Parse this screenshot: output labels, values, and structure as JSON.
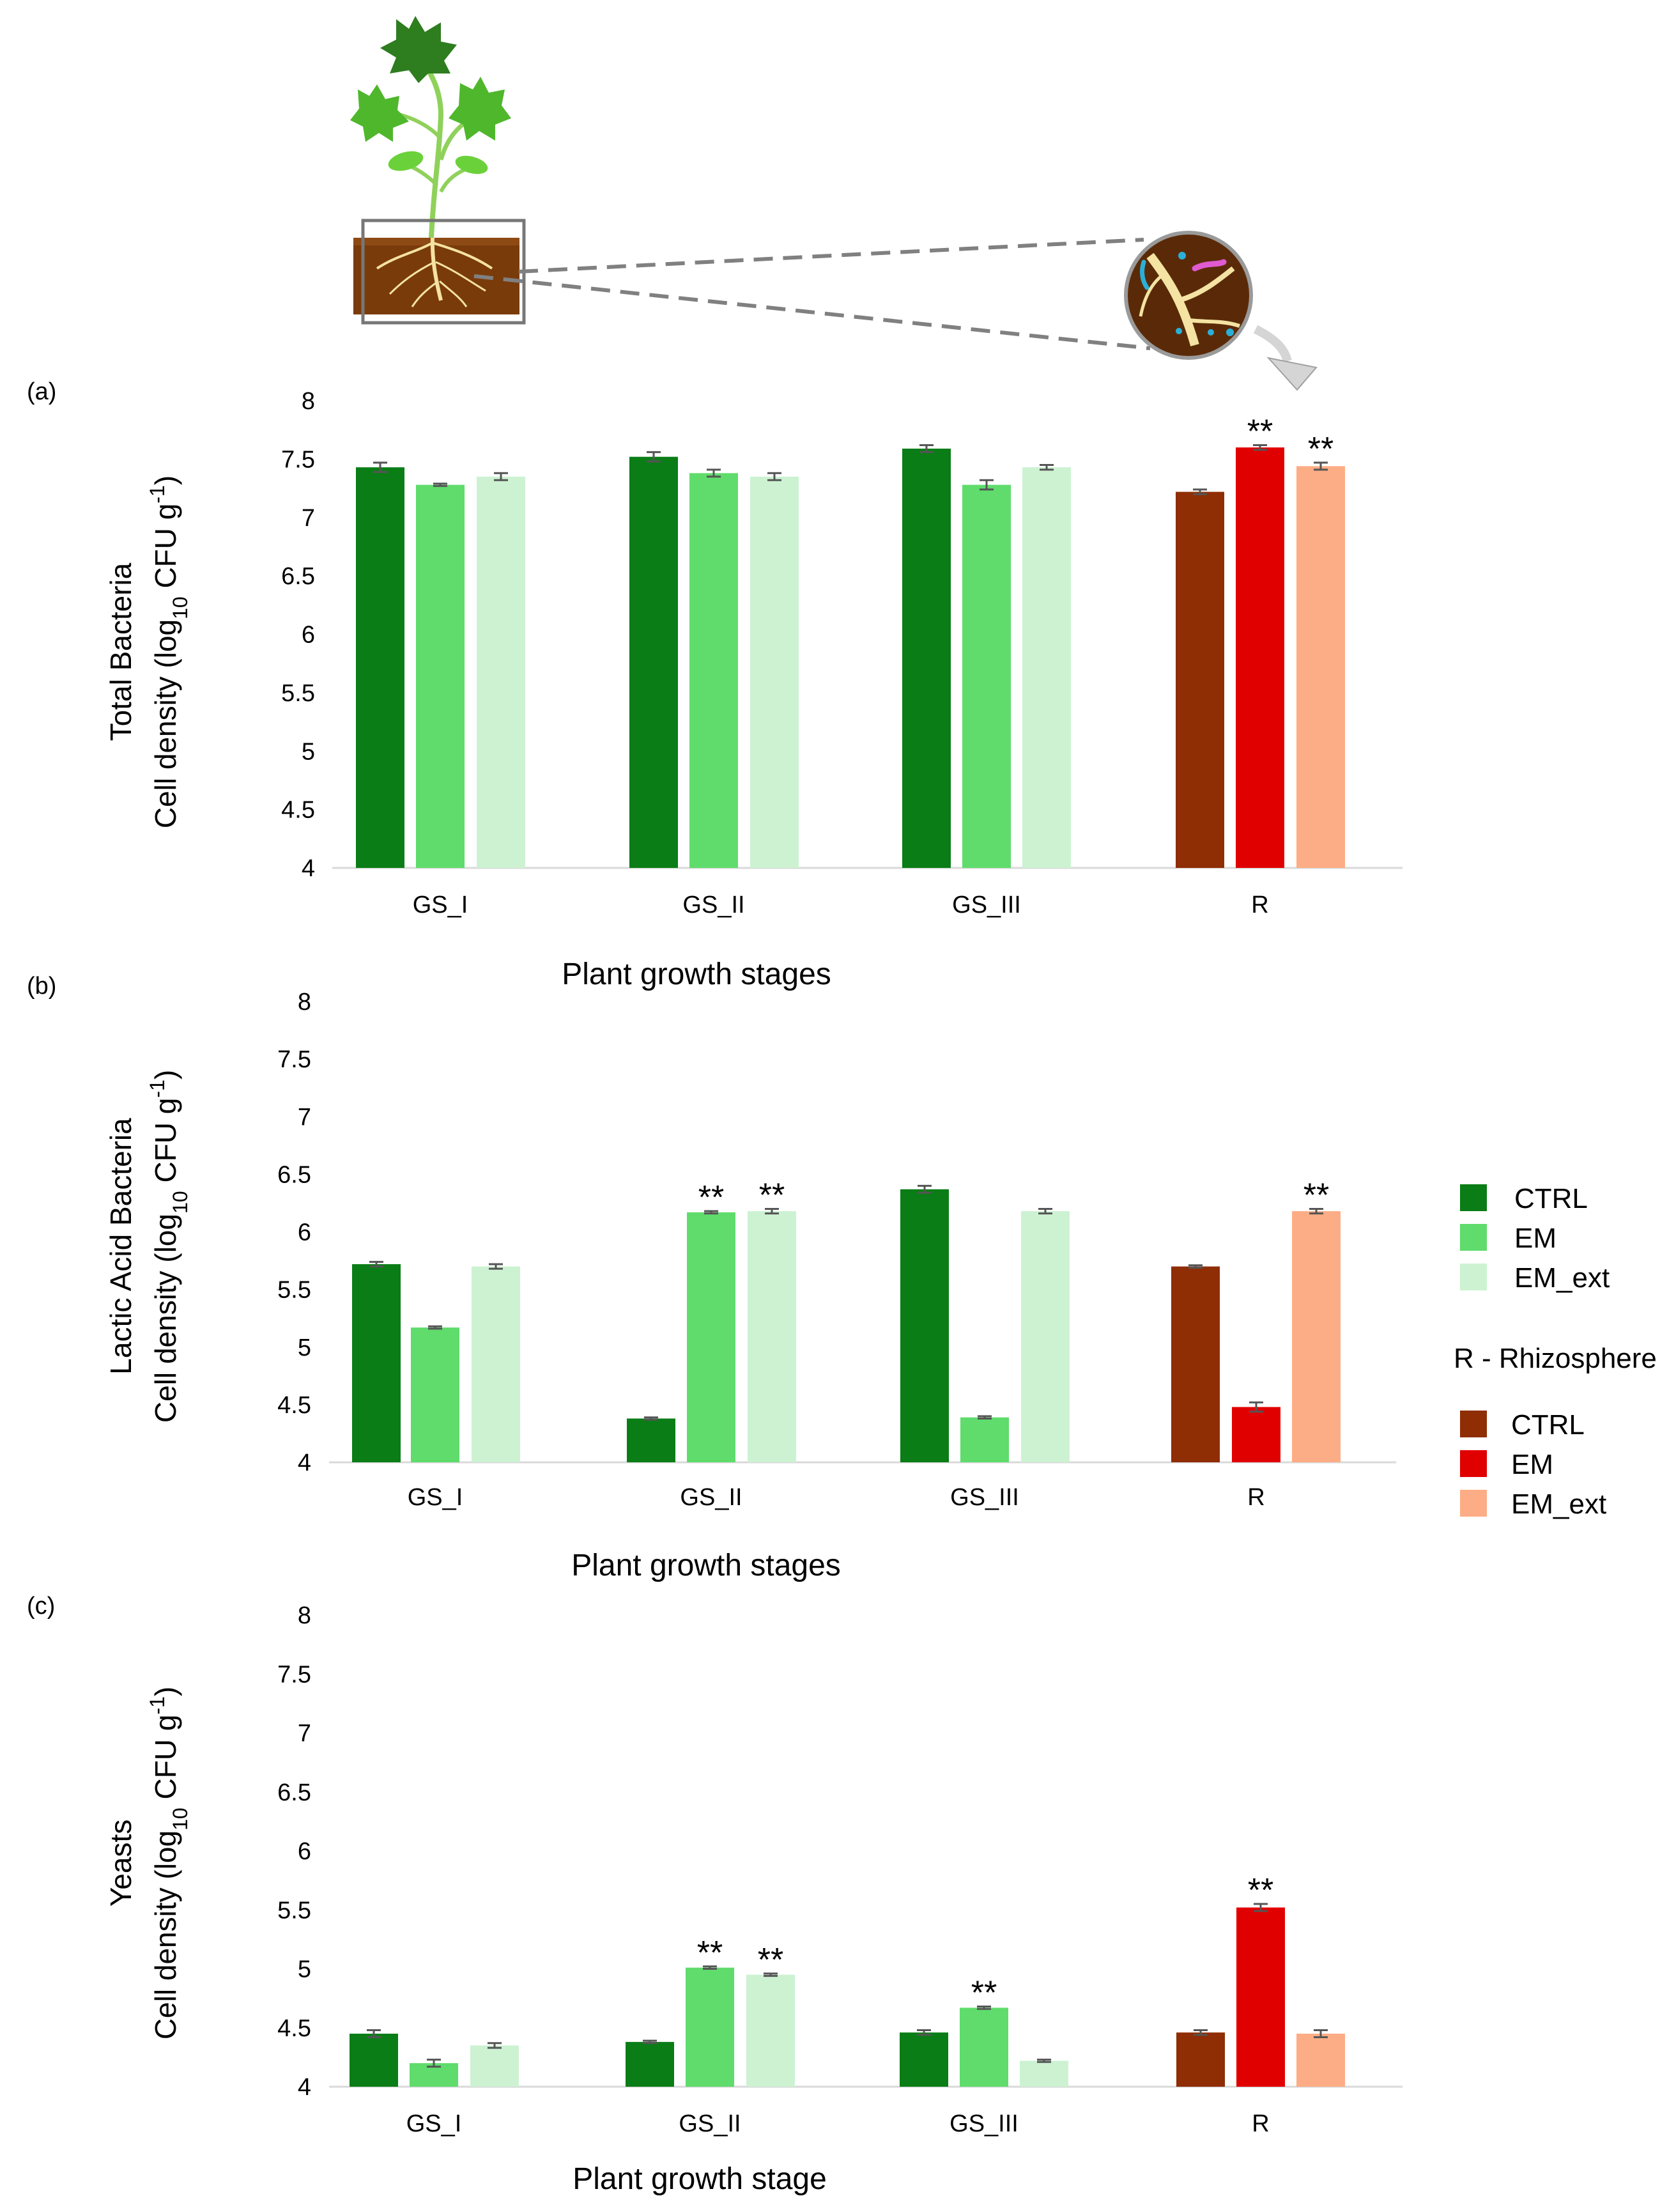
{
  "colors": {
    "ctrl": "#0a7d16",
    "em": "#5fdc6c",
    "em_ext": "#ccf2d2",
    "r_ctrl": "#8f2d04",
    "r_em": "#e10000",
    "r_em_ext": "#fdad85",
    "axis": "#d9d9d9",
    "error": "#555555"
  },
  "illustration": {
    "plant_icon": "plant-icon",
    "magnifier_icon": "rhizosphere-magnifier-icon",
    "arrow_icon": "curved-arrow-icon"
  },
  "legend": {
    "plant_items": [
      "CTRL",
      "EM",
      "EM_ext"
    ],
    "rhizo_title": "R - Rhizosphere",
    "rhizo_items": [
      "CTRL",
      "EM",
      "EM_ext"
    ]
  },
  "chart_data": [
    {
      "type": "bar",
      "panel_label": "(a)",
      "ylabel_line1": "Total Bacteria",
      "ylabel_line2_pre": "Cell density (log",
      "ylabel_sub": "10",
      "ylabel_mid": " CFU g",
      "ylabel_sup": "-1",
      "ylabel_end": ")",
      "xlabel": "Plant  growth stages",
      "categories": [
        "GS_I",
        "GS_II",
        "GS_III",
        "R"
      ],
      "yticks": [
        "4",
        "4.5",
        "5",
        "5.5",
        "6",
        "6.5",
        "7",
        "7.5",
        "8"
      ],
      "ylim": [
        4,
        8
      ],
      "series": [
        {
          "name": "CTRL",
          "values": [
            7.43,
            7.52,
            7.59,
            7.22
          ],
          "errors": [
            0.04,
            0.04,
            0.03,
            0.02
          ],
          "sig": [
            "",
            "",
            "",
            ""
          ]
        },
        {
          "name": "EM",
          "values": [
            7.28,
            7.38,
            7.28,
            7.6
          ],
          "errors": [
            0.01,
            0.03,
            0.04,
            0.02
          ],
          "sig": [
            "",
            "",
            "",
            "**"
          ]
        },
        {
          "name": "EM_ext",
          "values": [
            7.35,
            7.35,
            7.43,
            7.44
          ],
          "errors": [
            0.03,
            0.03,
            0.02,
            0.03
          ],
          "sig": [
            "",
            "",
            "",
            "**"
          ]
        }
      ]
    },
    {
      "type": "bar",
      "panel_label": "(b)",
      "ylabel_line1": "Lactic Acid Bacteria",
      "ylabel_line2_pre": "Cell density (log",
      "ylabel_sub": "10",
      "ylabel_mid": " CFU g",
      "ylabel_sup": "-1",
      "ylabel_end": ")",
      "xlabel": "Plant growth stages",
      "categories": [
        "GS_I",
        "GS_II",
        "GS_III",
        "R"
      ],
      "yticks": [
        "4",
        "4.5",
        "5",
        "5.5",
        "6",
        "6.5",
        "7",
        "7.5",
        "8"
      ],
      "ylim": [
        4,
        8
      ],
      "series": [
        {
          "name": "CTRL",
          "values": [
            5.72,
            4.38,
            6.37,
            5.7
          ],
          "errors": [
            0.02,
            0.01,
            0.03,
            0.01
          ],
          "sig": [
            "",
            "",
            "",
            ""
          ]
        },
        {
          "name": "EM",
          "values": [
            5.17,
            6.17,
            4.39,
            4.48
          ],
          "errors": [
            0.01,
            0.01,
            0.01,
            0.04
          ],
          "sig": [
            "",
            "**",
            "",
            ""
          ]
        },
        {
          "name": "EM_ext",
          "values": [
            5.7,
            6.18,
            6.18,
            6.18
          ],
          "errors": [
            0.02,
            0.02,
            0.02,
            0.02
          ],
          "sig": [
            "",
            "**",
            "",
            "**"
          ]
        }
      ]
    },
    {
      "type": "bar",
      "panel_label": "(c)",
      "ylabel_line1": "Yeasts",
      "ylabel_line2_pre": "Cell density (log",
      "ylabel_sub": "10",
      "ylabel_mid": " CFU g",
      "ylabel_sup": "-1",
      "ylabel_end": ")",
      "xlabel": "Plant growth stage",
      "categories": [
        "GS_I",
        "GS_II",
        "GS_III",
        "R"
      ],
      "yticks": [
        "4",
        "4.5",
        "5",
        "5.5",
        "6",
        "6.5",
        "7",
        "7.5",
        "8"
      ],
      "ylim": [
        4,
        8
      ],
      "series": [
        {
          "name": "CTRL",
          "values": [
            4.45,
            4.38,
            4.46,
            4.46
          ],
          "errors": [
            0.03,
            0.01,
            0.02,
            0.02
          ],
          "sig": [
            "",
            "",
            "",
            ""
          ]
        },
        {
          "name": "EM",
          "values": [
            4.2,
            5.01,
            4.67,
            5.52
          ],
          "errors": [
            0.03,
            0.01,
            0.01,
            0.03
          ],
          "sig": [
            "",
            "**",
            "**",
            "**"
          ]
        },
        {
          "name": "EM_ext",
          "values": [
            4.35,
            4.95,
            4.22,
            4.45
          ],
          "errors": [
            0.02,
            0.01,
            0.01,
            0.03
          ],
          "sig": [
            "",
            "**",
            "",
            ""
          ]
        }
      ]
    }
  ]
}
